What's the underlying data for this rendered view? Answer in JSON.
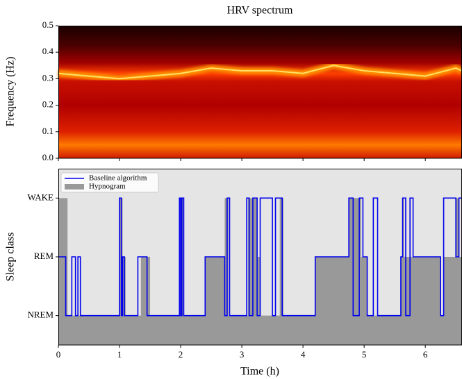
{
  "chart_data": [
    {
      "type": "spectrogram",
      "title": "HRV spectrum",
      "y_label": "Frequency (Hz)",
      "xlim": [
        0,
        6.6
      ],
      "ylim": [
        0,
        0.5
      ],
      "yticks": [
        {
          "value": 0,
          "label": "0.0"
        },
        0.1,
        0.2,
        0.3,
        0.4,
        0.5
      ],
      "series": [
        {
          "x": [
            0,
            0.5,
            1,
            1.5,
            2,
            2.5,
            3,
            3.5,
            4,
            4.5,
            5,
            5.5,
            6,
            6.5,
            6.6
          ],
          "values": [
            0.32,
            0.31,
            0.3,
            0.31,
            0.32,
            0.34,
            0.33,
            0.33,
            0.32,
            0.35,
            0.33,
            0.32,
            0.31,
            0.34,
            0.33
          ],
          "color": "#ffe066"
        }
      ]
    },
    {
      "type": "step",
      "x_label": "Time (h)",
      "y_label": "Sleep class",
      "xlim": [
        0,
        6.6
      ],
      "ylim": [
        -0.5,
        2.5
      ],
      "xticks": [
        0,
        1,
        2,
        3,
        4,
        5,
        6
      ],
      "yticks": [
        {
          "value": 0,
          "label": "NREM"
        },
        {
          "value": 1,
          "label": "REM"
        },
        {
          "value": 2,
          "label": "WAKE"
        }
      ],
      "legend": "upper left",
      "series": [
        {
          "name": "Hypnogram",
          "color": "#999999",
          "style": "area",
          "x": [
            0,
            0.15,
            1.0,
            1.05,
            1.1,
            1.35,
            1.5,
            1.98,
            2.05,
            2.4,
            2.72,
            2.78,
            3.1,
            3.25,
            3.3,
            3.62,
            3.68,
            4.2,
            4.75,
            4.95,
            5.05,
            5.6,
            5.62,
            5.65,
            6.25,
            6.3,
            6.5,
            6.55,
            6.6
          ],
          "values": [
            2,
            0,
            2,
            1,
            0,
            1,
            0,
            2,
            0,
            1,
            2,
            0,
            2,
            1,
            0,
            2,
            0,
            1,
            2,
            1,
            0,
            1,
            2,
            1,
            0,
            1,
            2,
            1,
            1
          ]
        },
        {
          "name": "Baseline algorithm",
          "color": "#0000ee",
          "style": "line",
          "x": [
            0,
            0.12,
            0.22,
            0.28,
            0.32,
            0.36,
            0.4,
            1.0,
            1.03,
            1.05,
            1.08,
            1.3,
            1.45,
            1.98,
            2.0,
            2.02,
            2.05,
            2.4,
            2.72,
            2.76,
            2.8,
            3.08,
            3.12,
            3.18,
            3.25,
            3.3,
            3.5,
            3.55,
            3.62,
            3.66,
            4.2,
            4.75,
            4.82,
            4.92,
            4.98,
            5.05,
            5.15,
            5.22,
            5.25,
            5.6,
            5.63,
            5.68,
            5.75,
            5.8,
            6.25,
            6.3,
            6.5,
            6.55,
            6.6
          ],
          "values": [
            1,
            0,
            1,
            0,
            1,
            0,
            0,
            2,
            0,
            1,
            0,
            1,
            0,
            2,
            0,
            2,
            0,
            1,
            0,
            2,
            0,
            2,
            0,
            2,
            0,
            2,
            0,
            2,
            2,
            0,
            1,
            2,
            0,
            2,
            1,
            0,
            2,
            0,
            0,
            1,
            2,
            0,
            2,
            1,
            0,
            2,
            1,
            2,
            2
          ]
        }
      ]
    }
  ]
}
